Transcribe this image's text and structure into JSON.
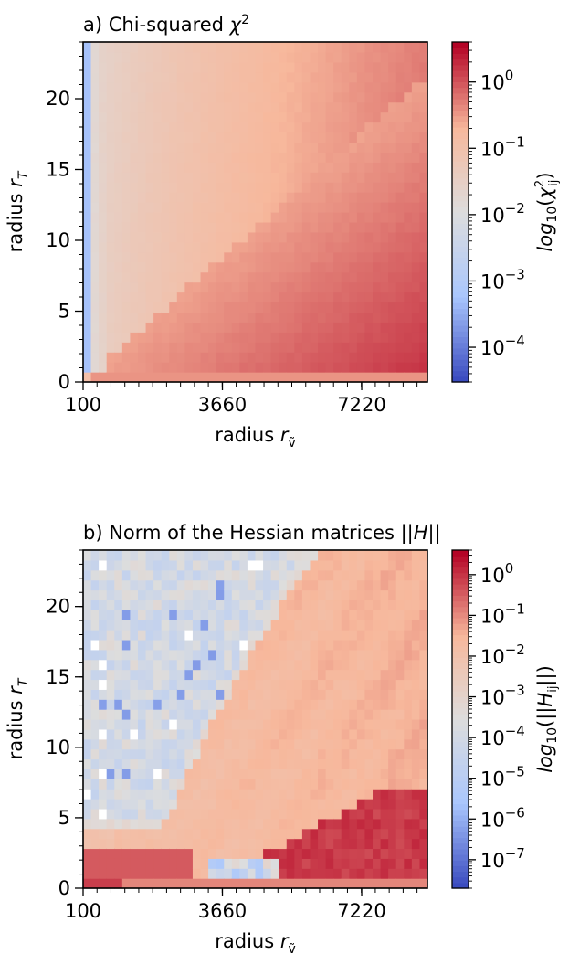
{
  "chart_data": [
    {
      "type": "heatmap",
      "title": "a) Chi-squared χ²",
      "xlabel": "radius r_ṽ",
      "ylabel": "radius r_T",
      "x_ticks": [
        "100",
        "3660",
        "7220"
      ],
      "x_tick_values": [
        100,
        3660,
        7220
      ],
      "xlim": [
        100,
        8900
      ],
      "y_ticks": [
        "0",
        "5",
        "10",
        "15",
        "20"
      ],
      "y_tick_values": [
        0,
        5,
        10,
        15,
        20
      ],
      "ylim": [
        0,
        24
      ],
      "colorbar": {
        "label": "log10(χ²ij)",
        "scale": "log",
        "range": [
          3e-05,
          4
        ],
        "tick_exponents": [
          "0",
          "−1",
          "−2",
          "−3",
          "−4"
        ],
        "tick_values": [
          1,
          0.1,
          0.01,
          0.001,
          0.0001
        ]
      },
      "colormap": [
        "#3b4cc0",
        "#aac7fd",
        "#dddddd",
        "#f7b89c",
        "#b40426"
      ],
      "grid": false
    },
    {
      "type": "heatmap",
      "title": "b) Norm of the Hessian matrices ||H||",
      "xlabel": "radius r_ṽ",
      "ylabel": "radius r_T",
      "x_ticks": [
        "100",
        "3660",
        "7220"
      ],
      "x_tick_values": [
        100,
        3660,
        7220
      ],
      "xlim": [
        100,
        8900
      ],
      "y_ticks": [
        "0",
        "5",
        "10",
        "15",
        "20"
      ],
      "y_tick_values": [
        0,
        5,
        10,
        15,
        20
      ],
      "ylim": [
        0,
        24
      ],
      "colorbar": {
        "label": "log10(||Hij||)",
        "scale": "log",
        "range": [
          2e-08,
          4
        ],
        "tick_exponents": [
          "0",
          "−1",
          "−2",
          "−3",
          "−4",
          "−5",
          "−6",
          "−7"
        ],
        "tick_values": [
          1,
          0.1,
          0.01,
          0.001,
          0.0001,
          1e-05,
          1e-06,
          1e-07
        ]
      },
      "colormap": [
        "#3b4cc0",
        "#aac7fd",
        "#dddddd",
        "#f7b89c",
        "#b40426"
      ],
      "grid": false
    }
  ]
}
